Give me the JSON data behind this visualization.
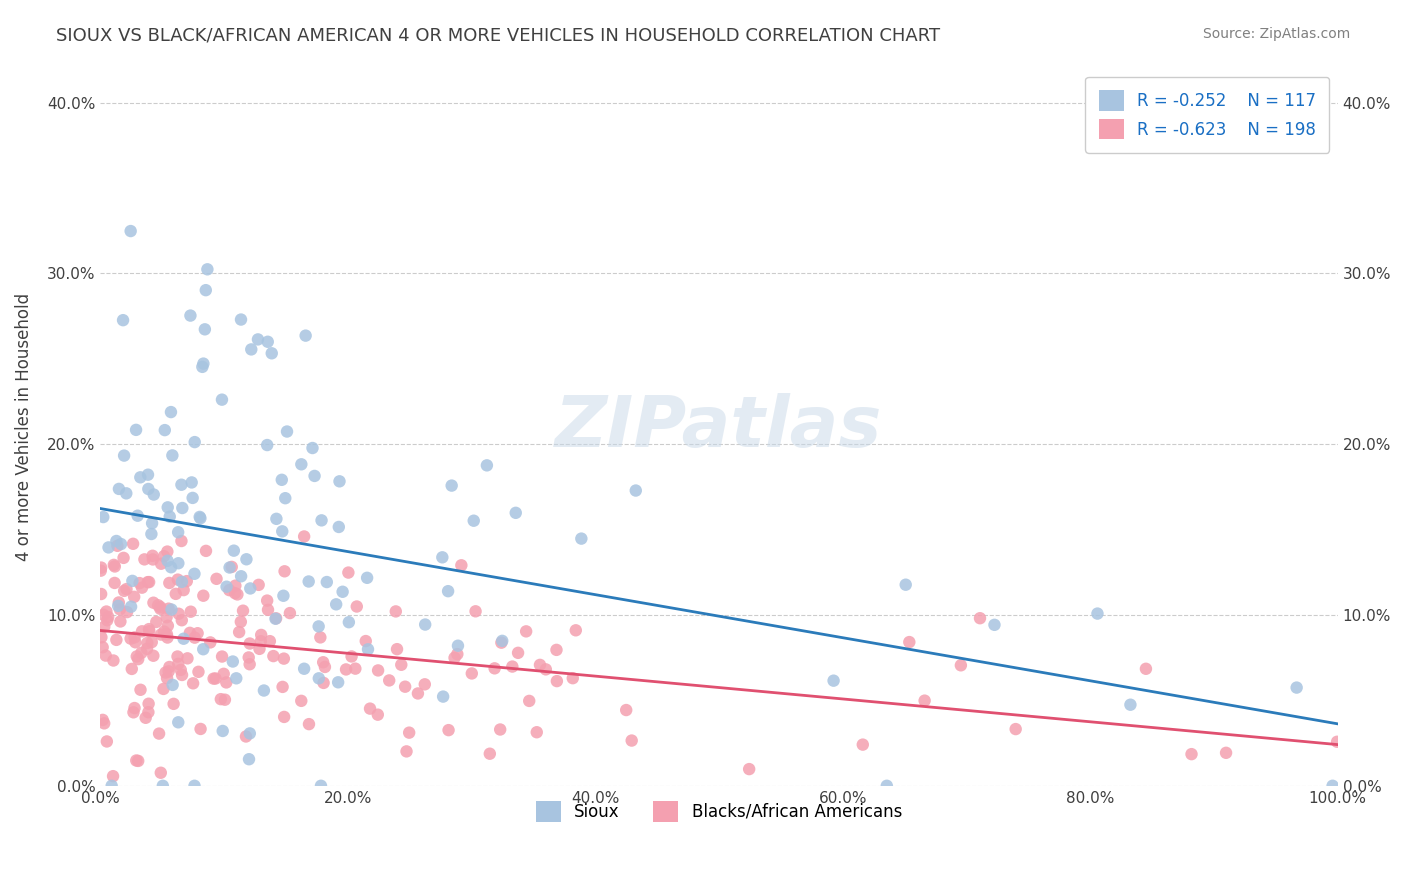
{
  "title": "SIOUX VS BLACK/AFRICAN AMERICAN 4 OR MORE VEHICLES IN HOUSEHOLD CORRELATION CHART",
  "source": "Source: ZipAtlas.com",
  "ylabel": "4 or more Vehicles in Household",
  "xlabel": "",
  "legend_labels": [
    "Sioux",
    "Blacks/African Americans"
  ],
  "legend_r": [
    "R = -0.252",
    "R = -0.623"
  ],
  "legend_n": [
    "N = 117",
    "N = 198"
  ],
  "xlim": [
    0,
    100
  ],
  "ylim": [
    0,
    42
  ],
  "yticks": [
    0,
    10,
    20,
    30,
    40
  ],
  "xticks": [
    0,
    20,
    40,
    60,
    80,
    100
  ],
  "xtick_labels": [
    "0.0%",
    "20.0%",
    "40.0%",
    "60.0%",
    "80.0%",
    "100.0%"
  ],
  "ytick_labels": [
    "0.0%",
    "10.0%",
    "20.0%",
    "30.0%",
    "40.0%"
  ],
  "color_sioux": "#a8c4e0",
  "color_black": "#f4a0b0",
  "color_sioux_line": "#2b7bba",
  "color_black_line": "#e05070",
  "title_color": "#404040",
  "source_color": "#808080",
  "background_color": "#ffffff",
  "watermark": "ZIPatlas"
}
